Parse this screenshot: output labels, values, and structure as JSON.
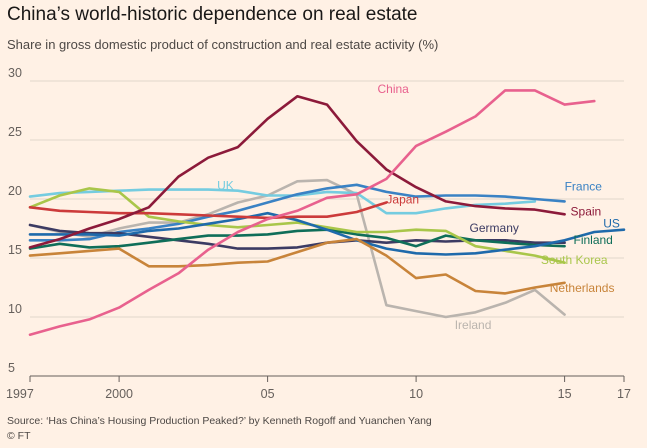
{
  "header": {
    "title": "China’s world-historic dependence on real estate",
    "subtitle": "Share in gross domestic product of construction and real estate activity (%)"
  },
  "footer": {
    "source": "Source: ‘Has China’s Housing Production Peaked?’ by Kenneth Rogoff and Yuanchen Yang",
    "credit": "© FT"
  },
  "chart_data": {
    "type": "line",
    "title": "China’s world-historic dependence on real estate",
    "subtitle": "Share in gross domestic product of construction and real estate activity (%)",
    "xlim": [
      1997,
      2017
    ],
    "ylim": [
      5,
      30
    ],
    "x_ticks": [
      1997,
      2000,
      2005,
      2010,
      2015,
      2017
    ],
    "x_tick_labels": [
      "1997",
      "2000",
      "05",
      "10",
      "15",
      "17"
    ],
    "y_ticks": [
      5,
      10,
      15,
      20,
      25,
      30
    ],
    "y_tick_labels": [
      "5",
      "10",
      "15",
      "20",
      "25",
      "30"
    ],
    "grid": "horizontal",
    "series": [
      {
        "name": "Ireland",
        "color": "#bab4ae",
        "label_at": [
          2011.3,
          9.0
        ],
        "x": [
          1997,
          1998,
          1999,
          2000,
          2001,
          2002,
          2003,
          2004,
          2005,
          2006,
          2007,
          2008,
          2009,
          2010,
          2011,
          2012,
          2013,
          2014,
          2015
        ],
        "y": [
          17.8,
          17.2,
          16.8,
          17.5,
          18.0,
          18.0,
          18.7,
          19.7,
          20.3,
          21.5,
          21.6,
          20.4,
          11.0,
          10.5,
          10.0,
          10.4,
          11.2,
          12.3,
          10.2
        ]
      },
      {
        "name": "UK",
        "color": "#75cce0",
        "label_at": [
          2003.3,
          20.8
        ],
        "x": [
          1997,
          1998,
          1999,
          2000,
          2001,
          2002,
          2003,
          2004,
          2005,
          2006,
          2007,
          2008,
          2009,
          2010,
          2011,
          2012,
          2013,
          2014
        ],
        "y": [
          20.2,
          20.5,
          20.6,
          20.7,
          20.8,
          20.8,
          20.8,
          20.7,
          20.3,
          20.3,
          20.6,
          20.5,
          18.8,
          18.8,
          19.2,
          19.5,
          19.6,
          19.8
        ]
      },
      {
        "name": "France",
        "color": "#3a82c4",
        "label_at": [
          2015.0,
          20.7
        ],
        "x": [
          1997,
          1998,
          1999,
          2000,
          2001,
          2002,
          2003,
          2004,
          2005,
          2006,
          2007,
          2008,
          2009,
          2010,
          2011,
          2012,
          2013,
          2014,
          2015
        ],
        "y": [
          16.5,
          16.5,
          16.6,
          17.2,
          17.5,
          17.9,
          18.5,
          19.0,
          19.7,
          20.4,
          20.9,
          21.2,
          20.6,
          20.2,
          20.3,
          20.3,
          20.2,
          20.0,
          19.8
        ]
      },
      {
        "name": "Germany",
        "color": "#3c3b63",
        "label_at": [
          2011.8,
          17.2
        ],
        "x": [
          1997,
          1998,
          1999,
          2000,
          2001,
          2002,
          2003,
          2004,
          2005,
          2006,
          2007,
          2008,
          2009,
          2010,
          2011,
          2012,
          2013,
          2014,
          2015
        ],
        "y": [
          17.8,
          17.3,
          17.1,
          17.1,
          16.8,
          16.5,
          16.2,
          15.8,
          15.8,
          15.9,
          16.3,
          16.5,
          16.3,
          16.5,
          16.4,
          16.5,
          16.5,
          16.3,
          16.3
        ]
      },
      {
        "name": "Finland",
        "color": "#0f6e59",
        "label_at": [
          2015.3,
          16.2
        ],
        "x": [
          1997,
          1998,
          1999,
          2000,
          2001,
          2002,
          2003,
          2004,
          2005,
          2006,
          2007,
          2008,
          2009,
          2010,
          2011,
          2012,
          2013,
          2014,
          2015
        ],
        "y": [
          15.8,
          16.2,
          15.9,
          16.0,
          16.3,
          16.6,
          16.9,
          16.9,
          17.0,
          17.3,
          17.4,
          17.0,
          16.7,
          16.0,
          16.9,
          16.5,
          16.3,
          16.1,
          16.0
        ]
      },
      {
        "name": "South Korea",
        "color": "#a9c64a",
        "label_at": [
          2014.2,
          14.5
        ],
        "x": [
          1997,
          1998,
          1999,
          2000,
          2001,
          2002,
          2003,
          2004,
          2005,
          2006,
          2007,
          2008,
          2009,
          2010,
          2011,
          2012,
          2013,
          2014,
          2015
        ],
        "y": [
          19.3,
          20.3,
          20.9,
          20.6,
          18.5,
          18.1,
          17.8,
          17.6,
          17.8,
          18.0,
          17.6,
          17.2,
          17.2,
          17.4,
          17.3,
          16.0,
          15.6,
          15.2,
          14.6
        ]
      },
      {
        "name": "US",
        "color": "#1f6aab",
        "label_at": [
          2016.3,
          17.6
        ],
        "x": [
          1997,
          1998,
          1999,
          2000,
          2001,
          2002,
          2003,
          2004,
          2005,
          2006,
          2007,
          2008,
          2009,
          2010,
          2011,
          2012,
          2013,
          2014,
          2015,
          2016,
          2017
        ],
        "y": [
          17.0,
          17.0,
          17.0,
          16.9,
          17.3,
          17.5,
          17.9,
          18.3,
          18.8,
          18.2,
          17.4,
          16.5,
          15.8,
          15.4,
          15.3,
          15.4,
          15.7,
          16.0,
          16.5,
          17.2,
          17.4
        ]
      },
      {
        "name": "Netherlands",
        "color": "#c8843a",
        "label_at": [
          2014.5,
          12.1
        ],
        "x": [
          1997,
          1998,
          1999,
          2000,
          2001,
          2002,
          2003,
          2004,
          2005,
          2006,
          2007,
          2008,
          2009,
          2010,
          2011,
          2012,
          2013,
          2014,
          2015
        ],
        "y": [
          15.2,
          15.4,
          15.6,
          15.8,
          14.3,
          14.3,
          14.4,
          14.6,
          14.7,
          15.5,
          16.3,
          16.6,
          15.2,
          13.3,
          13.6,
          12.2,
          12.0,
          12.5,
          12.9
        ]
      },
      {
        "name": "Japan",
        "color": "#cc3b3b",
        "label_at": [
          2009.0,
          19.6
        ],
        "x": [
          1997,
          1998,
          1999,
          2000,
          2001,
          2002,
          2003,
          2004,
          2005,
          2006,
          2007,
          2008,
          2009
        ],
        "y": [
          19.3,
          19.0,
          18.9,
          18.8,
          18.8,
          18.7,
          18.6,
          18.5,
          18.4,
          18.5,
          18.5,
          18.9,
          19.7
        ]
      },
      {
        "name": "Spain",
        "color": "#8c1a3a",
        "label_at": [
          2015.2,
          18.6
        ],
        "x": [
          1997,
          1998,
          1999,
          2000,
          2001,
          2002,
          2003,
          2004,
          2005,
          2006,
          2007,
          2008,
          2009,
          2010,
          2011,
          2012,
          2013,
          2014,
          2015
        ],
        "y": [
          15.9,
          16.6,
          17.5,
          18.3,
          19.3,
          21.9,
          23.5,
          24.4,
          26.8,
          28.7,
          28.0,
          24.9,
          22.5,
          21.0,
          19.8,
          19.4,
          19.2,
          19.1,
          18.7
        ]
      },
      {
        "name": "China",
        "color": "#e8618e",
        "label_at": [
          2008.7,
          29.0
        ],
        "x": [
          1997,
          1998,
          1999,
          2000,
          2001,
          2002,
          2003,
          2004,
          2005,
          2006,
          2007,
          2008,
          2009,
          2010,
          2011,
          2012,
          2013,
          2014,
          2015,
          2016
        ],
        "y": [
          8.5,
          9.2,
          9.8,
          10.8,
          12.3,
          13.7,
          15.7,
          17.2,
          18.3,
          19.0,
          20.1,
          20.4,
          21.7,
          24.5,
          25.7,
          27.0,
          29.2,
          29.2,
          28.0,
          28.3
        ]
      }
    ]
  }
}
